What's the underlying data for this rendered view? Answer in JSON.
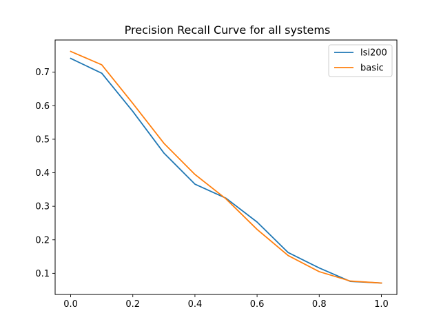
{
  "chart_data": {
    "type": "line",
    "title": "Precision Recall Curve for all systems",
    "xlabel": "",
    "ylabel": "",
    "x": [
      0.0,
      0.1,
      0.2,
      0.3,
      0.4,
      0.5,
      0.6,
      0.7,
      0.8,
      0.9,
      1.0
    ],
    "xlim": [
      -0.05,
      1.05
    ],
    "ylim": [
      0.037,
      0.796
    ],
    "xticks": [
      "0.0",
      "0.2",
      "0.4",
      "0.6",
      "0.8",
      "1.0"
    ],
    "yticks": [
      "0.1",
      "0.2",
      "0.3",
      "0.4",
      "0.5",
      "0.6",
      "0.7"
    ],
    "grid": false,
    "legend_position": "top-right",
    "series": [
      {
        "name": "lsi200",
        "color": "#1f77b4",
        "values": [
          0.741,
          0.697,
          0.583,
          0.459,
          0.366,
          0.324,
          0.253,
          0.162,
          0.116,
          0.076,
          0.071
        ]
      },
      {
        "name": "basic",
        "color": "#ff7f0e",
        "values": [
          0.762,
          0.722,
          0.607,
          0.488,
          0.395,
          0.322,
          0.231,
          0.153,
          0.105,
          0.077,
          0.071
        ]
      }
    ]
  }
}
